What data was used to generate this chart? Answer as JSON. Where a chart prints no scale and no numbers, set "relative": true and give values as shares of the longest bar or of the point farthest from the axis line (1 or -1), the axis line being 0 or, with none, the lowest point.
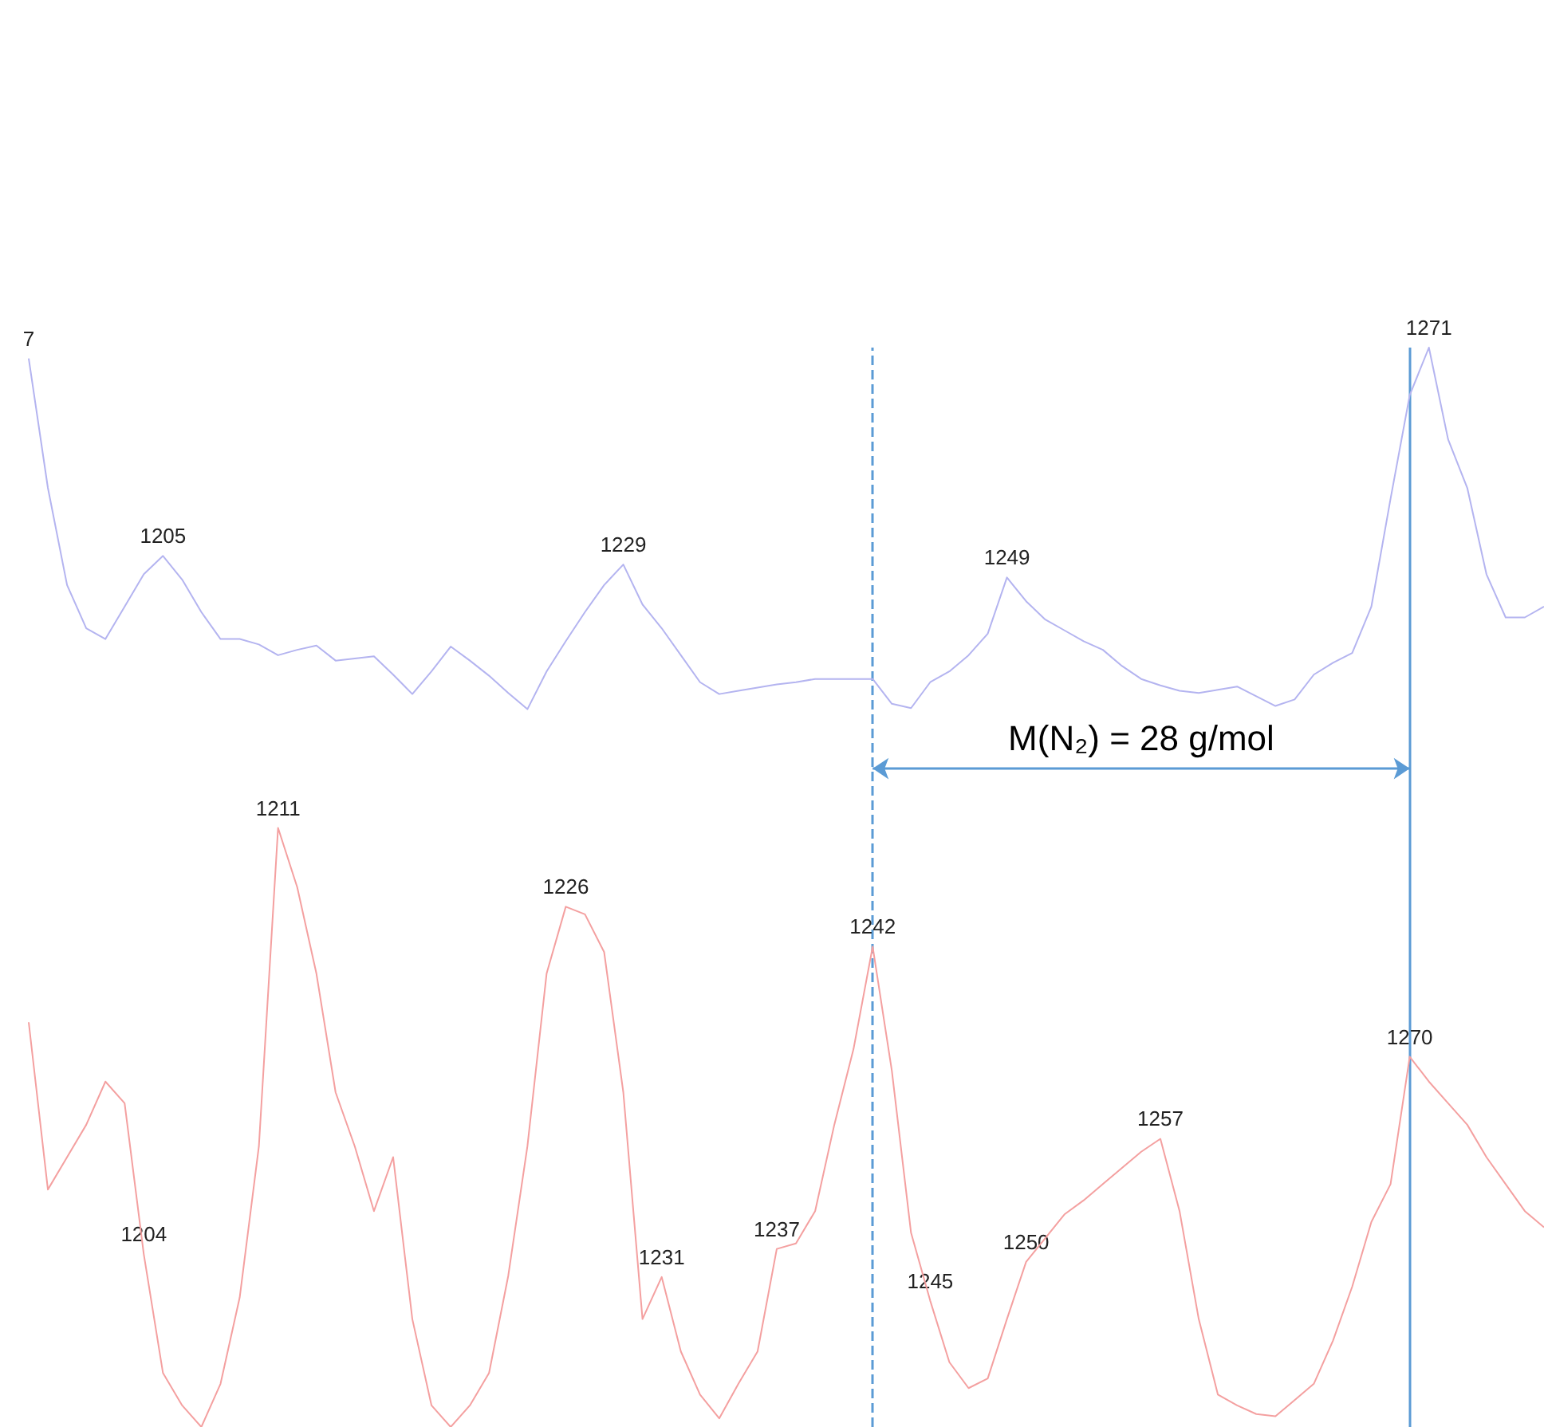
{
  "chart_data": {
    "type": "line",
    "relative": true,
    "tick_labels": false,
    "categories": [
      null,
      null,
      null,
      null,
      null,
      null,
      null,
      null,
      null,
      null,
      null,
      null,
      null,
      null,
      null,
      null,
      null,
      null,
      null,
      null,
      null,
      null,
      null,
      null,
      null,
      null,
      null,
      null,
      null,
      null,
      null,
      null,
      null,
      null,
      null,
      null,
      null,
      null,
      null,
      null,
      null,
      null,
      null,
      null,
      null,
      null,
      null,
      null,
      null,
      null,
      null,
      null,
      null,
      null,
      null,
      null,
      null,
      null,
      null,
      null,
      null,
      null,
      null,
      null,
      null,
      null,
      null,
      null,
      null,
      null,
      null,
      null,
      null,
      null,
      null,
      null,
      null,
      null,
      null,
      null
    ],
    "series": [
      {
        "color": "#b4b4f0",
        "values": [
          0.99,
          0.87,
          0.78,
          0.74,
          0.73,
          0.76,
          0.79,
          0.807,
          0.785,
          0.755,
          0.73,
          0.73,
          0.725,
          0.715,
          0.72,
          0.724,
          0.71,
          0.712,
          0.714,
          0.697,
          0.679,
          0.7,
          0.723,
          0.71,
          0.696,
          0.68,
          0.665,
          0.7,
          0.728,
          0.755,
          0.78,
          0.799,
          0.762,
          0.74,
          0.715,
          0.69,
          0.679,
          0.682,
          0.685,
          0.688,
          0.69,
          0.693,
          0.693,
          0.693,
          0.693,
          0.67,
          0.666,
          0.69,
          0.7,
          0.715,
          0.735,
          0.787,
          0.765,
          0.748,
          0.738,
          0.728,
          0.72,
          0.705,
          0.693,
          0.687,
          0.682,
          0.68,
          0.683,
          0.686,
          0.677,
          0.668,
          0.674,
          0.697,
          0.708,
          0.717,
          0.76,
          0.86,
          0.956,
          1.0,
          0.915,
          0.87,
          0.79,
          0.75,
          0.75,
          0.76
        ]
      },
      {
        "color": "#f4a0a0",
        "values": [
          0.375,
          0.22,
          0.25,
          0.28,
          0.32,
          0.3,
          0.16,
          0.05,
          0.02,
          0,
          0.04,
          0.12,
          0.26,
          0.555,
          0.5,
          0.42,
          0.31,
          0.26,
          0.2,
          0.25,
          0.1,
          0.02,
          0,
          0.02,
          0.05,
          0.14,
          0.26,
          0.42,
          0.482,
          0.475,
          0.44,
          0.31,
          0.1,
          0.139,
          0.07,
          0.03,
          0.008,
          0.04,
          0.07,
          0.165,
          0.17,
          0.2,
          0.28,
          0.35,
          0.445,
          0.33,
          0.18,
          0.117,
          0.06,
          0.036,
          0.045,
          0.1,
          0.153,
          0.175,
          0.197,
          0.21,
          0.225,
          0.24,
          0.255,
          0.267,
          0.2,
          0.1,
          0.03,
          0.02,
          0.012,
          0.01,
          0.025,
          0.04,
          0.08,
          0.13,
          0.19,
          0.225,
          0.343,
          0.32,
          0.3,
          0.28,
          0.25,
          0.225,
          0.2,
          0.185
        ]
      }
    ],
    "annotations": [
      "M(N₂) = 28 g/mol",
      {
        "text": "7",
        "y": 0.99
      },
      {
        "text": "1205",
        "y": 0.807
      },
      {
        "text": "1229",
        "y": 0.799
      },
      {
        "text": "1249",
        "y": 0.787
      },
      {
        "text": "1271",
        "y": 1.0
      },
      {
        "text": "1204",
        "y": 0.16
      },
      {
        "text": "1211",
        "y": 0.555
      },
      {
        "text": "1226",
        "y": 0.482
      },
      {
        "text": "1231",
        "y": 0.139
      },
      {
        "text": "1237",
        "y": 0.165
      },
      {
        "text": "1242",
        "y": 0.445
      },
      {
        "text": "1245",
        "y": 0.117
      },
      {
        "text": "1250",
        "y": 0.153
      },
      {
        "text": "1257",
        "y": 0.267
      },
      {
        "text": "1270",
        "y": 0.343
      }
    ]
  }
}
